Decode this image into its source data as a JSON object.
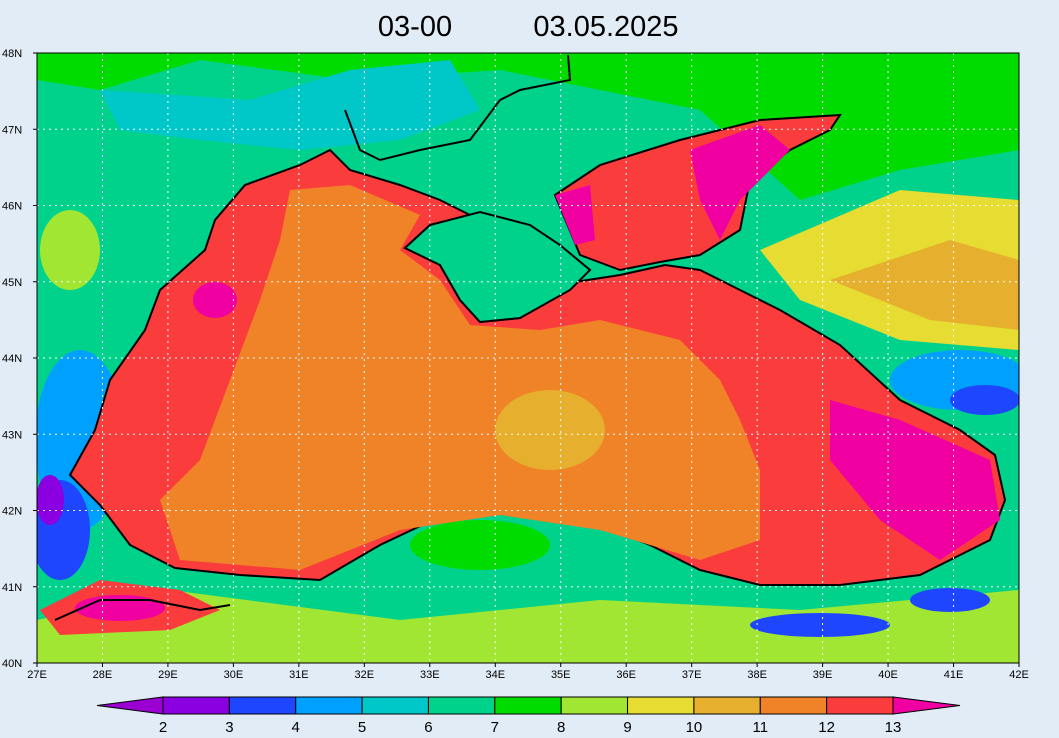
{
  "title": {
    "time": "03-00",
    "date": "03.05.2025"
  },
  "axes": {
    "lat_labels": [
      "48N",
      "47N",
      "46N",
      "45N",
      "44N",
      "43N",
      "42N",
      "41N",
      "40N"
    ],
    "lon_labels": [
      "27E",
      "28E",
      "29E",
      "30E",
      "31E",
      "32E",
      "33E",
      "34E",
      "35E",
      "36E",
      "37E",
      "38E",
      "39E",
      "40E",
      "41E",
      "42E"
    ]
  },
  "colorbar": {
    "labels": [
      2,
      3,
      4,
      5,
      6,
      7,
      8,
      9,
      10,
      11,
      12,
      13
    ],
    "colors": [
      "#9a00d2",
      "#8a00e0",
      "#1e46ff",
      "#00a0ff",
      "#00c8c8",
      "#00d28c",
      "#00dc00",
      "#a0e632",
      "#e6dc32",
      "#e6af2d",
      "#f08228",
      "#fa3c3c",
      "#f000a0"
    ]
  }
}
